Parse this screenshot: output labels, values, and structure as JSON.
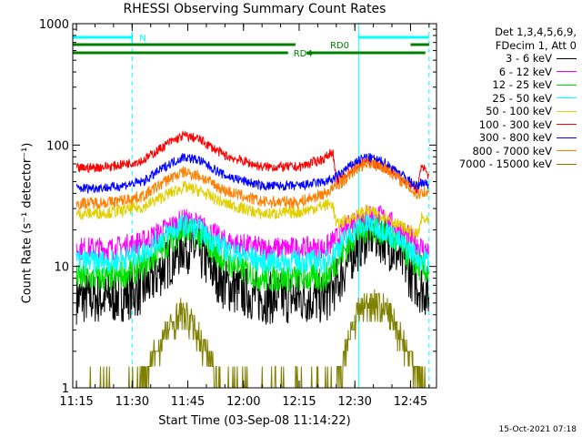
{
  "chart_data": {
    "type": "line",
    "title": "RHESSI Observing Summary Count Rates",
    "xlabel": "Start Time (03-Sep-08 11:14:22)",
    "ylabel": "Count Rate (s⁻¹ detector⁻¹)",
    "xlim": [
      "11:14",
      "12:52"
    ],
    "ylim": [
      1,
      1000
    ],
    "yscale": "log",
    "x_ticks": [
      "11:15",
      "11:30",
      "11:45",
      "12:00",
      "12:15",
      "12:30",
      "12:45"
    ],
    "y_ticks": [
      "1",
      "10",
      "100",
      "1000"
    ],
    "grid": false,
    "legend_position": "right",
    "legend_header": [
      "Det 1,3,4,5,6,9,",
      "FDecim 1, Att 0"
    ],
    "series": [
      {
        "name": "3 - 6 keV",
        "color": "#000000",
        "x": [
          "11:15",
          "11:25",
          "11:33",
          "11:40",
          "11:44",
          "11:48",
          "11:55",
          "12:05",
          "12:15",
          "12:22",
          "12:26",
          "12:30",
          "12:34",
          "12:38",
          "12:43",
          "12:47",
          "12:50"
        ],
        "values": [
          5.5,
          5.5,
          6.5,
          11,
          15,
          13,
          7,
          5.5,
          5.5,
          5.5,
          8,
          14,
          19,
          17,
          11,
          7,
          6
        ]
      },
      {
        "name": "6 - 12 keV",
        "color": "#ff00ff",
        "x": [
          "11:15",
          "11:25",
          "11:33",
          "11:40",
          "11:44",
          "11:48",
          "11:55",
          "12:05",
          "12:15",
          "12:22",
          "12:26",
          "12:30",
          "12:34",
          "12:38",
          "12:43",
          "12:47",
          "12:50"
        ],
        "values": [
          14,
          14,
          16,
          21,
          24,
          22,
          16,
          14,
          14,
          14,
          18,
          24,
          27,
          25,
          19,
          15,
          13
        ]
      },
      {
        "name": "12 - 25 keV",
        "color": "#00e000",
        "x": [
          "11:15",
          "11:25",
          "11:33",
          "11:40",
          "11:44",
          "11:48",
          "11:55",
          "12:05",
          "12:15",
          "12:22",
          "12:26",
          "12:30",
          "12:34",
          "12:38",
          "12:43",
          "12:47",
          "12:50"
        ],
        "values": [
          8,
          8,
          10,
          16,
          20,
          18,
          11,
          8,
          8,
          8,
          12,
          18,
          21,
          19,
          14,
          10,
          9
        ]
      },
      {
        "name": "25 - 50 keV",
        "color": "#00ffff",
        "x": [
          "11:15",
          "11:25",
          "11:33",
          "11:40",
          "11:44",
          "11:48",
          "11:55",
          "12:05",
          "12:15",
          "12:22",
          "12:26",
          "12:30",
          "12:34",
          "12:38",
          "12:43",
          "12:47",
          "12:50"
        ],
        "values": [
          11,
          11,
          13,
          19,
          22,
          20,
          14,
          11,
          11,
          11,
          15,
          20,
          22,
          20,
          15,
          12,
          11
        ]
      },
      {
        "name": "50 - 100 keV",
        "color": "#e0d000",
        "x": [
          "11:15",
          "11:25",
          "11:33",
          "11:40",
          "11:44",
          "11:48",
          "11:55",
          "12:05",
          "12:15",
          "12:22",
          "12:24",
          "12:25",
          "12:30",
          "12:33",
          "12:38",
          "12:43",
          "12:47",
          "12:48",
          "12:50"
        ],
        "values": [
          27,
          28,
          31,
          40,
          45,
          42,
          33,
          27,
          28,
          32,
          33,
          22,
          26,
          29,
          26,
          21,
          18,
          25,
          23
        ]
      },
      {
        "name": "100 - 300 keV",
        "color": "#ff0000",
        "x": [
          "11:15",
          "11:25",
          "11:33",
          "11:40",
          "11:44",
          "11:48",
          "11:55",
          "12:05",
          "12:15",
          "12:22",
          "12:24",
          "12:25",
          "12:30",
          "12:33",
          "12:38",
          "12:43",
          "12:47",
          "12:48",
          "12:50"
        ],
        "values": [
          64,
          67,
          75,
          105,
          120,
          112,
          82,
          66,
          66,
          78,
          90,
          50,
          65,
          74,
          66,
          52,
          43,
          70,
          55
        ]
      },
      {
        "name": "300 - 800 keV",
        "color": "#0000ff",
        "x": [
          "11:15",
          "11:25",
          "11:33",
          "11:40",
          "11:44",
          "11:48",
          "11:55",
          "12:05",
          "12:15",
          "12:22",
          "12:24",
          "12:25",
          "12:30",
          "12:33",
          "12:38",
          "12:43",
          "12:47",
          "12:48",
          "12:50"
        ],
        "values": [
          44,
          45,
          50,
          70,
          80,
          75,
          56,
          46,
          46,
          50,
          52,
          55,
          72,
          80,
          72,
          56,
          45,
          50,
          47
        ]
      },
      {
        "name": "800 - 7000 keV",
        "color": "#ff8000",
        "x": [
          "11:15",
          "11:25",
          "11:33",
          "11:40",
          "11:44",
          "11:48",
          "11:55",
          "12:05",
          "12:15",
          "12:22",
          "12:24",
          "12:25",
          "12:30",
          "12:33",
          "12:38",
          "12:43",
          "12:47",
          "12:48",
          "12:50"
        ],
        "values": [
          33,
          34,
          38,
          53,
          60,
          56,
          42,
          34,
          34,
          40,
          44,
          45,
          62,
          72,
          65,
          50,
          38,
          42,
          40
        ]
      },
      {
        "name": "7000 - 15000 keV",
        "color": "#808000",
        "x": [
          "11:15",
          "11:31",
          "11:35",
          "11:39",
          "11:43",
          "11:46",
          "11:50",
          "11:54",
          "12:25",
          "12:28",
          "12:31",
          "12:35",
          "12:39",
          "12:43",
          "12:47",
          "12:49"
        ],
        "values": [
          1,
          1,
          1.6,
          2.8,
          4.2,
          3.5,
          2.0,
          1,
          1,
          2.5,
          4.5,
          5.2,
          4.2,
          2.5,
          1.3,
          1
        ]
      }
    ],
    "annotations": [
      {
        "label": "N",
        "color": "#00ffff",
        "kind": "attenuator-flag",
        "from": "11:14",
        "to": "11:30"
      },
      {
        "label": "RD0",
        "color": "#008000",
        "kind": "decimation-flag",
        "from": "11:14",
        "to": "12:50"
      },
      {
        "label": "RD4",
        "color": "#008000",
        "kind": "decimation-flag",
        "from": "11:14",
        "to": "12:49"
      }
    ],
    "vertical_markers": [
      {
        "x": "11:14",
        "color": "#00ffff",
        "style": "solid"
      },
      {
        "x": "11:30",
        "color": "#00ffff",
        "style": "dashed"
      },
      {
        "x": "12:31",
        "color": "#00ffff",
        "style": "solid"
      },
      {
        "x": "12:50",
        "color": "#00ffff",
        "style": "dashed"
      }
    ]
  },
  "footer": {
    "timestamp": "15-Oct-2021 07:18"
  }
}
